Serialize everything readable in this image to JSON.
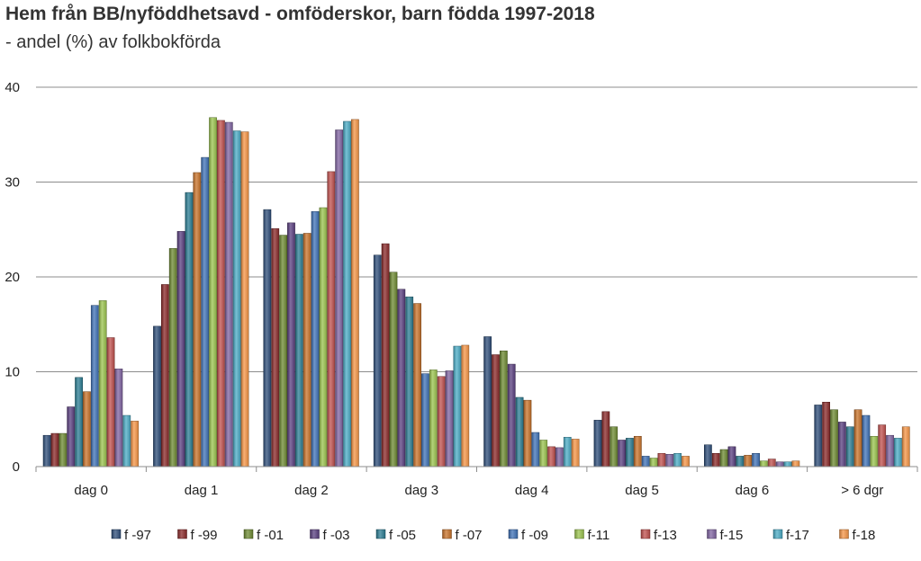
{
  "chart_data": {
    "type": "bar",
    "title": "Hem från BB/nyföddhetsavd - omföderskor, barn födda 1997-2018",
    "subtitle": "- andel (%) av folkbokförda",
    "categories": [
      "dag 0",
      "dag 1",
      "dag 2",
      "dag 3",
      "dag 4",
      "dag 5",
      "dag 6",
      "> 6 dgr"
    ],
    "ylim": [
      0,
      40
    ],
    "yticks": [
      0,
      10,
      20,
      30,
      40
    ],
    "grid": true,
    "legend_position": "bottom",
    "series": [
      {
        "name": "f -97",
        "color": "#2E4E7A",
        "values": [
          3.3,
          14.8,
          27.1,
          22.3,
          13.7,
          4.9,
          2.3,
          6.5
        ]
      },
      {
        "name": "f -99",
        "color": "#8B2A2A",
        "values": [
          3.5,
          19.2,
          25.1,
          23.5,
          11.8,
          5.8,
          1.4,
          6.8
        ]
      },
      {
        "name": "f -01",
        "color": "#6E8B32",
        "values": [
          3.5,
          23.0,
          24.4,
          20.5,
          12.2,
          4.2,
          1.8,
          6.0
        ]
      },
      {
        "name": "f -03",
        "color": "#5A3F80",
        "values": [
          6.3,
          24.8,
          25.7,
          18.7,
          10.8,
          2.8,
          2.1,
          4.7
        ]
      },
      {
        "name": "f -05",
        "color": "#2C7E94",
        "values": [
          9.4,
          28.9,
          24.5,
          17.9,
          7.3,
          3.0,
          1.1,
          4.2
        ]
      },
      {
        "name": "f -07",
        "color": "#C9732A",
        "values": [
          7.9,
          31.0,
          24.6,
          17.2,
          7.0,
          3.2,
          1.2,
          6.0
        ]
      },
      {
        "name": "f -09",
        "color": "#4073B8",
        "values": [
          17.0,
          32.6,
          26.9,
          9.8,
          3.6,
          1.1,
          1.4,
          5.4
        ]
      },
      {
        "name": "f-11",
        "color": "#9BC44E",
        "values": [
          17.5,
          36.8,
          27.3,
          10.2,
          2.8,
          0.9,
          0.6,
          3.2
        ]
      },
      {
        "name": "f-13",
        "color": "#C0504D",
        "values": [
          13.6,
          36.5,
          31.1,
          9.5,
          2.1,
          1.4,
          0.8,
          4.4
        ]
      },
      {
        "name": "f-15",
        "color": "#8064A2",
        "values": [
          10.3,
          36.3,
          35.5,
          10.1,
          2.0,
          1.3,
          0.5,
          3.3
        ]
      },
      {
        "name": "f-17",
        "color": "#4BACC6",
        "values": [
          5.4,
          35.4,
          36.4,
          12.7,
          3.1,
          1.4,
          0.5,
          3.0
        ]
      },
      {
        "name": "f-18",
        "color": "#F79646",
        "values": [
          4.8,
          35.3,
          36.6,
          12.8,
          2.9,
          1.1,
          0.6,
          4.2
        ]
      }
    ]
  }
}
